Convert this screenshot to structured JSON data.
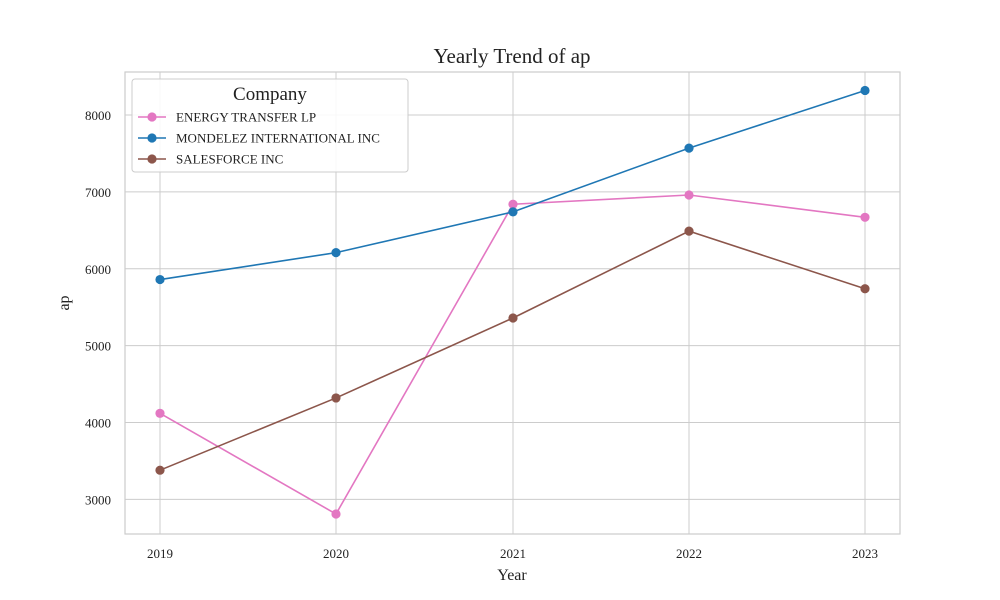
{
  "chart_data": {
    "type": "line",
    "title": "Yearly Trend of ap",
    "xlabel": "Year",
    "ylabel": "ap",
    "categories": [
      "2019",
      "2020",
      "2021",
      "2022",
      "2023"
    ],
    "yticks": [
      "3000",
      "4000",
      "5000",
      "6000",
      "7000",
      "8000"
    ],
    "ylim": [
      2550,
      8560
    ],
    "grid": true,
    "legend": {
      "title": "Company",
      "placement": "top-left"
    },
    "series": [
      {
        "name": "ENERGY TRANSFER LP",
        "color": "#e377c2",
        "values": [
          4120,
          2810,
          6840,
          6960,
          6670
        ]
      },
      {
        "name": "MONDELEZ INTERNATIONAL INC",
        "color": "#1f77b4",
        "values": [
          5860,
          6210,
          6740,
          7570,
          8320
        ]
      },
      {
        "name": "SALESFORCE INC",
        "color": "#8c564b",
        "values": [
          3380,
          4320,
          5360,
          6490,
          5740
        ]
      }
    ]
  }
}
